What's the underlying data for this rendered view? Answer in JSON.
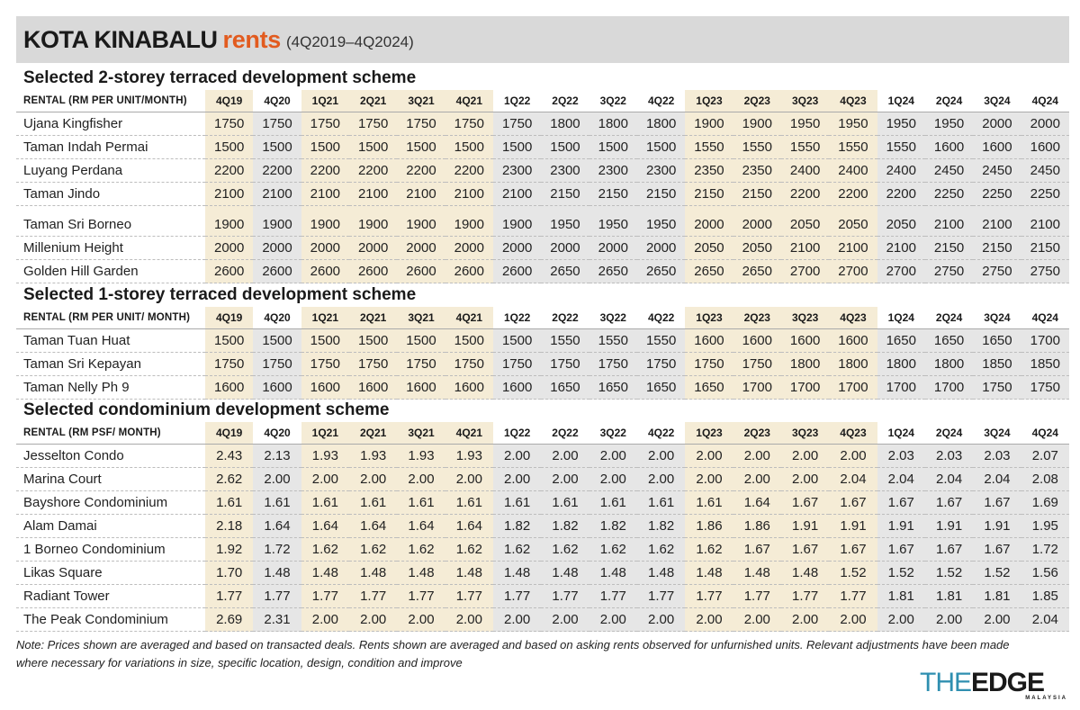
{
  "header": {
    "title_main": "KOTA KINABALU",
    "title_accent": "rents",
    "title_range": "(4Q2019–4Q2024)"
  },
  "colors": {
    "accent": "#e25b1f",
    "shade_tan": "#f5ecd6",
    "shade_grey": "#e6e6e6",
    "logo_blue": "#2f8fb0"
  },
  "chart_data": [
    {
      "type": "table",
      "title": "Selected 2-storey terraced development scheme",
      "header_label": "RENTAL (RM PER UNIT/MONTH)",
      "columns": [
        "4Q19",
        "4Q20",
        "1Q21",
        "2Q21",
        "3Q21",
        "4Q21",
        "1Q22",
        "2Q22",
        "3Q22",
        "4Q22",
        "1Q23",
        "2Q23",
        "3Q23",
        "4Q23",
        "1Q24",
        "2Q24",
        "3Q24",
        "4Q24"
      ],
      "rows": [
        {
          "name": "Ujana Kingfisher",
          "values": [
            "1750",
            "1750",
            "1750",
            "1750",
            "1750",
            "1750",
            "1750",
            "1800",
            "1800",
            "1800",
            "1900",
            "1900",
            "1950",
            "1950",
            "1950",
            "1950",
            "2000",
            "2000"
          ]
        },
        {
          "name": "Taman Indah Permai",
          "values": [
            "1500",
            "1500",
            "1500",
            "1500",
            "1500",
            "1500",
            "1500",
            "1500",
            "1500",
            "1500",
            "1550",
            "1550",
            "1550",
            "1550",
            "1550",
            "1600",
            "1600",
            "1600"
          ]
        },
        {
          "name": "Luyang Perdana",
          "values": [
            "2200",
            "2200",
            "2200",
            "2200",
            "2200",
            "2200",
            "2300",
            "2300",
            "2300",
            "2300",
            "2350",
            "2350",
            "2400",
            "2400",
            "2400",
            "2450",
            "2450",
            "2450"
          ]
        },
        {
          "name": "Taman Jindo",
          "values": [
            "2100",
            "2100",
            "2100",
            "2100",
            "2100",
            "2100",
            "2100",
            "2150",
            "2150",
            "2150",
            "2150",
            "2150",
            "2200",
            "2200",
            "2200",
            "2250",
            "2250",
            "2250"
          ]
        },
        {
          "name": "Taman Sri Borneo",
          "values": [
            "1900",
            "1900",
            "1900",
            "1900",
            "1900",
            "1900",
            "1900",
            "1950",
            "1950",
            "1950",
            "2000",
            "2000",
            "2050",
            "2050",
            "2050",
            "2100",
            "2100",
            "2100"
          ]
        },
        {
          "name": "Millenium Height",
          "values": [
            "2000",
            "2000",
            "2000",
            "2000",
            "2000",
            "2000",
            "2000",
            "2000",
            "2000",
            "2000",
            "2050",
            "2050",
            "2100",
            "2100",
            "2100",
            "2150",
            "2150",
            "2150"
          ]
        },
        {
          "name": "Golden Hill Garden",
          "values": [
            "2600",
            "2600",
            "2600",
            "2600",
            "2600",
            "2600",
            "2600",
            "2650",
            "2650",
            "2650",
            "2650",
            "2650",
            "2700",
            "2700",
            "2700",
            "2750",
            "2750",
            "2750"
          ]
        }
      ]
    },
    {
      "type": "table",
      "title": "Selected 1-storey terraced development scheme",
      "header_label": "RENTAL (RM PER UNIT/ MONTH)",
      "columns": [
        "4Q19",
        "4Q20",
        "1Q21",
        "2Q21",
        "3Q21",
        "4Q21",
        "1Q22",
        "2Q22",
        "3Q22",
        "4Q22",
        "1Q23",
        "2Q23",
        "3Q23",
        "4Q23",
        "1Q24",
        "2Q24",
        "3Q24",
        "4Q24"
      ],
      "rows": [
        {
          "name": "Taman Tuan Huat",
          "values": [
            "1500",
            "1500",
            "1500",
            "1500",
            "1500",
            "1500",
            "1500",
            "1550",
            "1550",
            "1550",
            "1600",
            "1600",
            "1600",
            "1600",
            "1650",
            "1650",
            "1650",
            "1700"
          ]
        },
        {
          "name": "Taman Sri Kepayan",
          "values": [
            "1750",
            "1750",
            "1750",
            "1750",
            "1750",
            "1750",
            "1750",
            "1750",
            "1750",
            "1750",
            "1750",
            "1750",
            "1800",
            "1800",
            "1800",
            "1800",
            "1850",
            "1850"
          ]
        },
        {
          "name": "Taman Nelly Ph 9",
          "values": [
            "1600",
            "1600",
            "1600",
            "1600",
            "1600",
            "1600",
            "1600",
            "1650",
            "1650",
            "1650",
            "1650",
            "1700",
            "1700",
            "1700",
            "1700",
            "1700",
            "1750",
            "1750"
          ]
        }
      ]
    },
    {
      "type": "table",
      "title": "Selected condominium development scheme",
      "header_label": "RENTAL (RM PSF/ MONTH)",
      "columns": [
        "4Q19",
        "4Q20",
        "1Q21",
        "2Q21",
        "3Q21",
        "4Q21",
        "1Q22",
        "2Q22",
        "3Q22",
        "4Q22",
        "1Q23",
        "2Q23",
        "3Q23",
        "4Q23",
        "1Q24",
        "2Q24",
        "3Q24",
        "4Q24"
      ],
      "rows": [
        {
          "name": "Jesselton Condo",
          "values": [
            "2.43",
            "2.13",
            "1.93",
            "1.93",
            "1.93",
            "1.93",
            "2.00",
            "2.00",
            "2.00",
            "2.00",
            "2.00",
            "2.00",
            "2.00",
            "2.00",
            "2.03",
            "2.03",
            "2.03",
            "2.07"
          ]
        },
        {
          "name": "Marina Court",
          "values": [
            "2.62",
            "2.00",
            "2.00",
            "2.00",
            "2.00",
            "2.00",
            "2.00",
            "2.00",
            "2.00",
            "2.00",
            "2.00",
            "2.00",
            "2.00",
            "2.04",
            "2.04",
            "2.04",
            "2.04",
            "2.08"
          ]
        },
        {
          "name": "Bayshore Condominium",
          "values": [
            "1.61",
            "1.61",
            "1.61",
            "1.61",
            "1.61",
            "1.61",
            "1.61",
            "1.61",
            "1.61",
            "1.61",
            "1.61",
            "1.64",
            "1.67",
            "1.67",
            "1.67",
            "1.67",
            "1.67",
            "1.69"
          ]
        },
        {
          "name": "Alam Damai",
          "values": [
            "2.18",
            "1.64",
            "1.64",
            "1.64",
            "1.64",
            "1.64",
            "1.82",
            "1.82",
            "1.82",
            "1.82",
            "1.86",
            "1.86",
            "1.91",
            "1.91",
            "1.91",
            "1.91",
            "1.91",
            "1.95"
          ]
        },
        {
          "name": "1 Borneo Condominium",
          "values": [
            "1.92",
            "1.72",
            "1.62",
            "1.62",
            "1.62",
            "1.62",
            "1.62",
            "1.62",
            "1.62",
            "1.62",
            "1.62",
            "1.67",
            "1.67",
            "1.67",
            "1.67",
            "1.67",
            "1.67",
            "1.72"
          ]
        },
        {
          "name": "Likas Square",
          "values": [
            "1.70",
            "1.48",
            "1.48",
            "1.48",
            "1.48",
            "1.48",
            "1.48",
            "1.48",
            "1.48",
            "1.48",
            "1.48",
            "1.48",
            "1.48",
            "1.52",
            "1.52",
            "1.52",
            "1.52",
            "1.56"
          ]
        },
        {
          "name": "Radiant Tower",
          "values": [
            "1.77",
            "1.77",
            "1.77",
            "1.77",
            "1.77",
            "1.77",
            "1.77",
            "1.77",
            "1.77",
            "1.77",
            "1.77",
            "1.77",
            "1.77",
            "1.77",
            "1.81",
            "1.81",
            "1.81",
            "1.85"
          ]
        },
        {
          "name": "The Peak Condominium",
          "values": [
            "2.69",
            "2.31",
            "2.00",
            "2.00",
            "2.00",
            "2.00",
            "2.00",
            "2.00",
            "2.00",
            "2.00",
            "2.00",
            "2.00",
            "2.00",
            "2.00",
            "2.00",
            "2.00",
            "2.00",
            "2.04"
          ]
        }
      ]
    }
  ],
  "note": "Note: Prices shown are averaged and based on transacted deals. Rents shown are averaged and based on asking rents observed for unfurnished units. Relevant adjustments have been made where necessary for variations in size, specific location, design, condition and improve",
  "logo": {
    "part1": "THE",
    "part2": "EDGE",
    "part3": "MALAYSIA"
  }
}
